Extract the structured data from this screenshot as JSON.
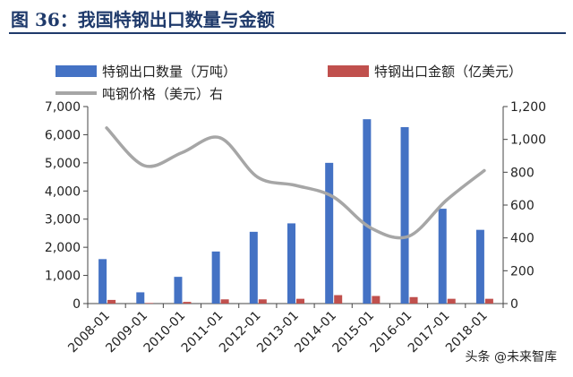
{
  "header": {
    "title": "图 36：我国特钢出口数量与金额"
  },
  "watermark": {
    "text": "头条 @未来智库"
  },
  "chart_data": {
    "type": "bar",
    "categories": [
      "2008-01",
      "2009-01",
      "2010-01",
      "2011-01",
      "2012-01",
      "2013-01",
      "2014-01",
      "2015-01",
      "2016-01",
      "2017-01",
      "2018-01"
    ],
    "series": [
      {
        "name": "特钢出口数量（万吨）",
        "type": "bar",
        "axis": "left",
        "color": "#4472c4",
        "values": [
          1580,
          400,
          950,
          1850,
          2550,
          2850,
          5000,
          6550,
          6270,
          3370,
          2620
        ]
      },
      {
        "name": "特钢出口金额（亿美元）",
        "type": "bar",
        "axis": "left",
        "color": "#c0504d",
        "values": [
          130,
          20,
          60,
          150,
          150,
          170,
          300,
          270,
          230,
          170,
          170
        ]
      },
      {
        "name": "吨钢价格（美元）右",
        "type": "line",
        "axis": "right",
        "color": "#a6a6a6",
        "values": [
          1070,
          840,
          920,
          1010,
          770,
          720,
          650,
          460,
          410,
          630,
          810
        ]
      }
    ],
    "y_left": {
      "ylim": [
        0,
        7000
      ],
      "ticks": [
        "0",
        "1,000",
        "2,000",
        "3,000",
        "4,000",
        "5,000",
        "6,000",
        "7,000"
      ],
      "tick_values": [
        0,
        1000,
        2000,
        3000,
        4000,
        5000,
        6000,
        7000
      ]
    },
    "y_right": {
      "ylim": [
        0,
        1200
      ],
      "ticks": [
        "0",
        "200",
        "400",
        "600",
        "800",
        "1,000",
        "1,200"
      ],
      "tick_values": [
        0,
        200,
        400,
        600,
        800,
        1000,
        1200
      ]
    },
    "grid": false,
    "legend": "top"
  }
}
